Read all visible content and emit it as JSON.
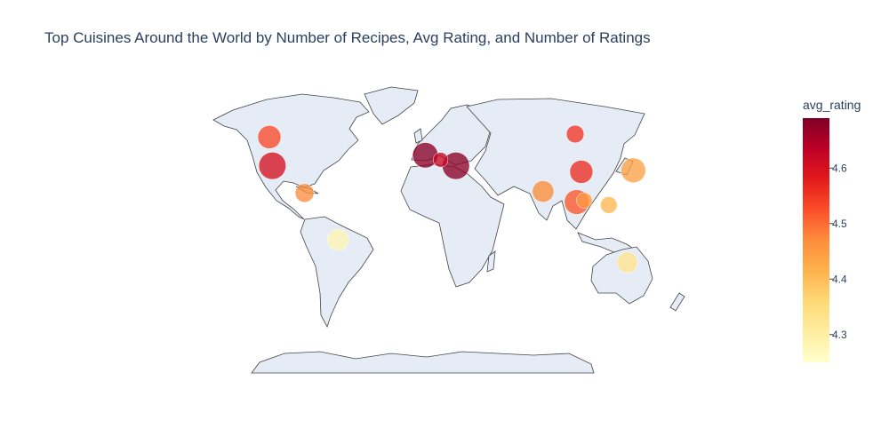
{
  "chart_data": {
    "type": "scatter_geo",
    "title": "Top Cuisines Around the World by Number of Recipes, Avg Rating, and Number of Ratings",
    "colorbar": {
      "title": "avg_rating",
      "range": [
        4.25,
        4.69
      ],
      "ticks": [
        4.3,
        4.4,
        4.5,
        4.6
      ],
      "colorscale": [
        "#ffffcc",
        "#ffeda0",
        "#fed976",
        "#feb24c",
        "#fd8d3c",
        "#fc4e2a",
        "#e31a1c",
        "#bd0026",
        "#800026"
      ]
    },
    "points": [
      {
        "lon": -100,
        "lat": 58,
        "avg_rating": 4.53,
        "size": 1.0
      },
      {
        "lon": -98,
        "lat": 39,
        "avg_rating": 4.6,
        "size": 1.25
      },
      {
        "lon": -77,
        "lat": 21,
        "avg_rating": 4.47,
        "size": 0.72
      },
      {
        "lon": -55,
        "lat": -10,
        "avg_rating": 4.28,
        "size": 0.9
      },
      {
        "lon": 2,
        "lat": 46,
        "avg_rating": 4.68,
        "size": 1.15
      },
      {
        "lon": 12,
        "lat": 43,
        "avg_rating": 4.62,
        "size": 0.48
      },
      {
        "lon": 22,
        "lat": 39,
        "avg_rating": 4.68,
        "size": 1.25
      },
      {
        "lon": 100,
        "lat": 60,
        "avg_rating": 4.55,
        "size": 0.65
      },
      {
        "lon": 104,
        "lat": 35,
        "avg_rating": 4.56,
        "size": 1.0
      },
      {
        "lon": 79,
        "lat": 22,
        "avg_rating": 4.47,
        "size": 0.9
      },
      {
        "lon": 101,
        "lat": 15,
        "avg_rating": 4.52,
        "size": 1.1
      },
      {
        "lon": 106,
        "lat": 16,
        "avg_rating": 4.45,
        "size": 0.55
      },
      {
        "lon": 138,
        "lat": 36,
        "avg_rating": 4.44,
        "size": 1.1
      },
      {
        "lon": 122,
        "lat": 13,
        "avg_rating": 4.41,
        "size": 0.6
      },
      {
        "lon": 134,
        "lat": -25,
        "avg_rating": 4.33,
        "size": 0.85
      }
    ]
  }
}
